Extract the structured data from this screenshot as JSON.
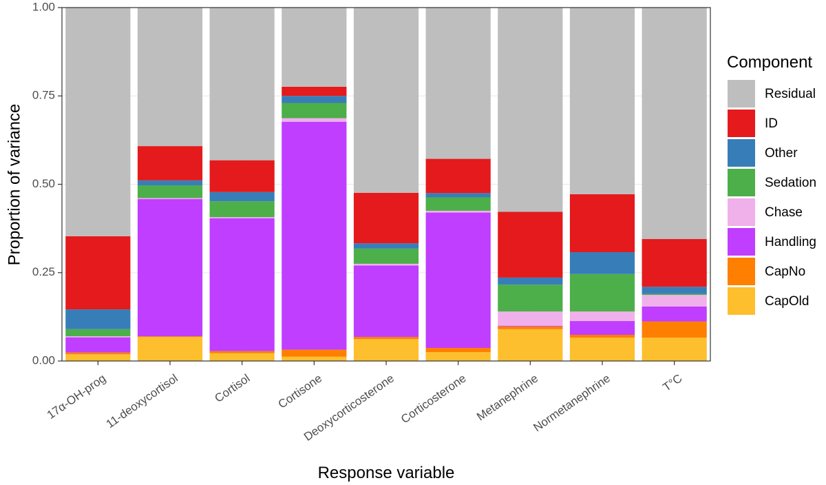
{
  "chart_data": {
    "type": "stacked-bar",
    "x_label": "Response variable",
    "y_label": "Proportion of variance",
    "legend_title": "Component",
    "categories": [
      "17α-OH-prog",
      "11-deoxycortisol",
      "Cortisol",
      "Cortisone",
      "Deoxycorticosterone",
      "Corticosterone",
      "Metanephrine",
      "Normetanephrine",
      "T°C"
    ],
    "series": [
      {
        "name": "Residual",
        "color": "#bebebe",
        "values": [
          0.647,
          0.392,
          0.432,
          0.224,
          0.524,
          0.428,
          0.578,
          0.528,
          0.655
        ]
      },
      {
        "name": "ID",
        "color": "#e41a1c",
        "values": [
          0.207,
          0.097,
          0.09,
          0.026,
          0.143,
          0.097,
          0.186,
          0.164,
          0.135
        ]
      },
      {
        "name": "Other",
        "color": "#377eb8",
        "values": [
          0.056,
          0.014,
          0.026,
          0.02,
          0.015,
          0.012,
          0.02,
          0.062,
          0.02
        ]
      },
      {
        "name": "Sedation",
        "color": "#4daf4a",
        "values": [
          0.02,
          0.036,
          0.045,
          0.043,
          0.043,
          0.038,
          0.076,
          0.106,
          0.003
        ]
      },
      {
        "name": "Chase",
        "color": "#f0b0ea",
        "values": [
          0.003,
          0.003,
          0.003,
          0.01,
          0.005,
          0.005,
          0.04,
          0.027,
          0.033
        ]
      },
      {
        "name": "Handling",
        "color": "#bf3eff",
        "values": [
          0.043,
          0.388,
          0.376,
          0.645,
          0.202,
          0.383,
          0.002,
          0.039,
          0.042
        ]
      },
      {
        "name": "CapNo",
        "color": "#ff7f00",
        "values": [
          0.005,
          0.002,
          0.006,
          0.02,
          0.006,
          0.012,
          0.008,
          0.008,
          0.046
        ]
      },
      {
        "name": "CapOld",
        "color": "#fdbf2d",
        "values": [
          0.019,
          0.068,
          0.022,
          0.012,
          0.062,
          0.025,
          0.09,
          0.066,
          0.066
        ]
      }
    ],
    "ylim": [
      0,
      1
    ],
    "yticks": [
      {
        "value": 0,
        "label": "0.00"
      },
      {
        "value": 0.25,
        "label": "0.25"
      },
      {
        "value": 0.5,
        "label": "0.50"
      },
      {
        "value": 0.75,
        "label": "0.75"
      },
      {
        "value": 1,
        "label": "1.00"
      }
    ],
    "grid": true
  }
}
